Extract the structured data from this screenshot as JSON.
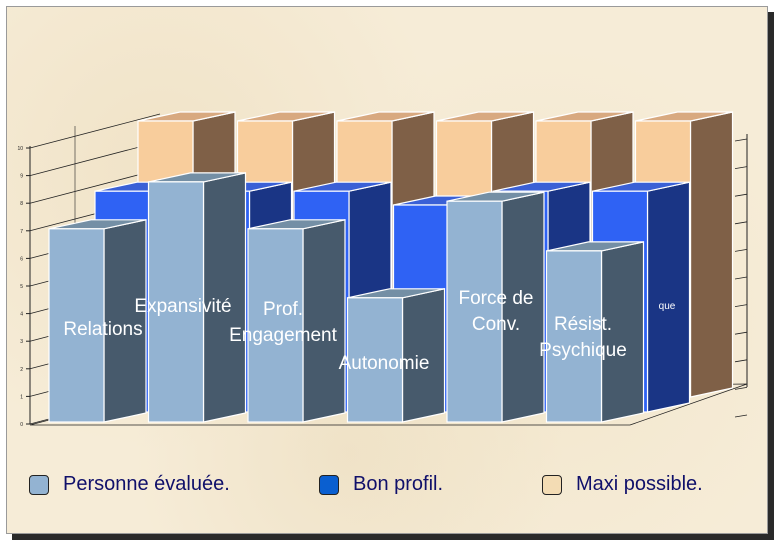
{
  "chart_data": {
    "type": "bar",
    "categories": [
      {
        "lines": [
          "Relations"
        ]
      },
      {
        "lines": [
          "Expansivité"
        ]
      },
      {
        "lines": [
          "Prof.",
          "Engagement"
        ]
      },
      {
        "lines": [
          "Autonomie"
        ]
      },
      {
        "lines": [
          "Force de",
          "Conv."
        ]
      },
      {
        "lines": [
          "Résist.",
          "Psychique"
        ]
      }
    ],
    "hidden_label": "que",
    "series": [
      {
        "name": "Personne évaluée.",
        "color": "#93b3d2",
        "values": [
          7,
          8.7,
          7,
          4.5,
          8,
          6.2
        ]
      },
      {
        "name": "Bon profil.",
        "color": "#2f62f4",
        "values": [
          8,
          8,
          8,
          7.5,
          8,
          8
        ]
      },
      {
        "name": "Maxi possible.",
        "color": "#f8cd9c",
        "values": [
          10,
          10,
          10,
          10,
          10,
          10
        ]
      }
    ],
    "ylim": [
      0,
      10
    ],
    "yticks": [
      "0",
      "1",
      "2",
      "3",
      "4",
      "5",
      "6",
      "7",
      "8",
      "9",
      "10"
    ],
    "grid": true,
    "legend_position": "bottom"
  }
}
